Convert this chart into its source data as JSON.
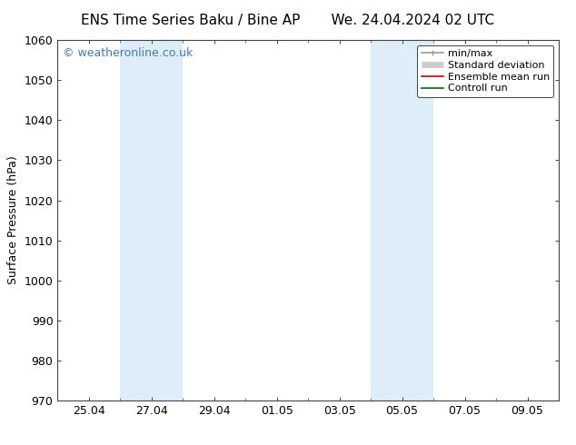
{
  "title": "ENS Time Series Baku / Bine AP       We. 24.04.2024 02 UTC",
  "ylabel": "Surface Pressure (hPa)",
  "ylim": [
    970,
    1060
  ],
  "yticks": [
    970,
    980,
    990,
    1000,
    1010,
    1020,
    1030,
    1040,
    1050,
    1060
  ],
  "x_tick_labels": [
    "25.04",
    "27.04",
    "29.04",
    "01.05",
    "03.05",
    "05.05",
    "07.05",
    "09.05"
  ],
  "x_tick_positions": [
    1,
    3,
    5,
    7,
    9,
    11,
    13,
    15
  ],
  "xlim": [
    0,
    16
  ],
  "shaded_regions": [
    {
      "x_start": 2.0,
      "x_end": 4.0,
      "color": "#ddeef8"
    },
    {
      "x_start": 10.0,
      "x_end": 12.0,
      "color": "#ddeef8"
    }
  ],
  "watermark_text": "© weatheronline.co.uk",
  "watermark_color": "#4477bb",
  "watermark_fontsize": 9,
  "legend_entries": [
    {
      "label": "min/max",
      "color": "#999999",
      "lw": 1.2,
      "linestyle": "-"
    },
    {
      "label": "Standard deviation",
      "color": "#cccccc",
      "lw": 5,
      "linestyle": "-"
    },
    {
      "label": "Ensemble mean run",
      "color": "#cc0000",
      "lw": 1.2,
      "linestyle": "-"
    },
    {
      "label": "Controll run",
      "color": "#006600",
      "lw": 1.2,
      "linestyle": "-"
    }
  ],
  "bg_color": "#ffffff",
  "plot_bg_color": "#ffffff",
  "title_fontsize": 11,
  "axis_label_fontsize": 9,
  "tick_fontsize": 9
}
